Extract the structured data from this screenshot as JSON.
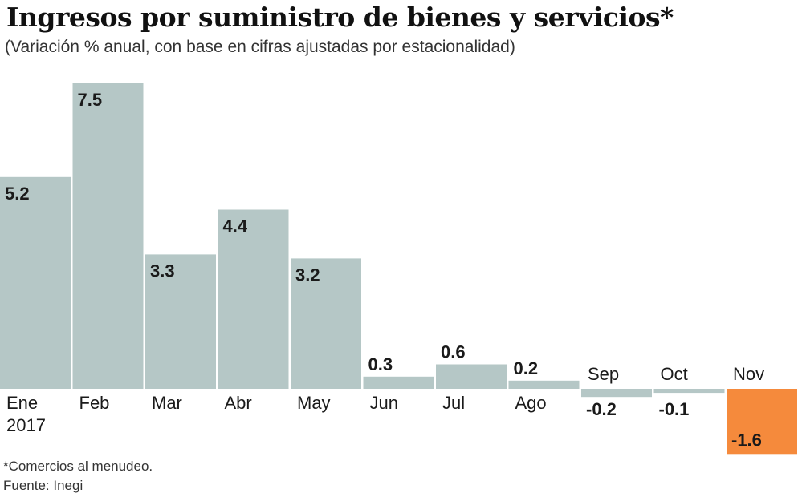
{
  "header": {
    "title": "Ingresos por suministro de bienes y servicios*",
    "subtitle": "(Variación % anual, con base en cifras ajustadas por estacionalidad)"
  },
  "chart_data": {
    "type": "bar",
    "title": "Ingresos por suministro de bienes y servicios*",
    "subtitle": "(Variación % anual, con base en cifras ajustadas por estacionalidad)",
    "categories": [
      "Ene 2017",
      "Feb",
      "Mar",
      "Abr",
      "May",
      "Jun",
      "Jul",
      "Ago",
      "Sep",
      "Oct",
      "Nov"
    ],
    "category_lines": [
      [
        "Ene",
        "2017"
      ],
      [
        "Feb"
      ],
      [
        "Mar"
      ],
      [
        "Abr"
      ],
      [
        "May"
      ],
      [
        "Jun"
      ],
      [
        "Jul"
      ],
      [
        "Ago"
      ],
      [
        "Sep"
      ],
      [
        "Oct"
      ],
      [
        "Nov"
      ]
    ],
    "values": [
      5.2,
      7.5,
      3.3,
      4.4,
      3.2,
      0.3,
      0.6,
      0.2,
      -0.2,
      -0.1,
      -1.6
    ],
    "value_labels": [
      "5.2",
      "7.5",
      "3.3",
      "4.4",
      "3.2",
      "0.3",
      "0.6",
      "0.2",
      "-0.2",
      "-0.1",
      "-1.6"
    ],
    "highlight_index": 10,
    "xlabel": "",
    "ylabel": "",
    "ylim": [
      -1.6,
      7.5
    ],
    "grid": false,
    "colors": {
      "bar": "#b5c7c6",
      "highlight": "#f58a3c",
      "text": "#1a1a1a"
    }
  },
  "footer": {
    "footnote": "*Comercios al menudeo.",
    "source": "Fuente: Inegi"
  }
}
